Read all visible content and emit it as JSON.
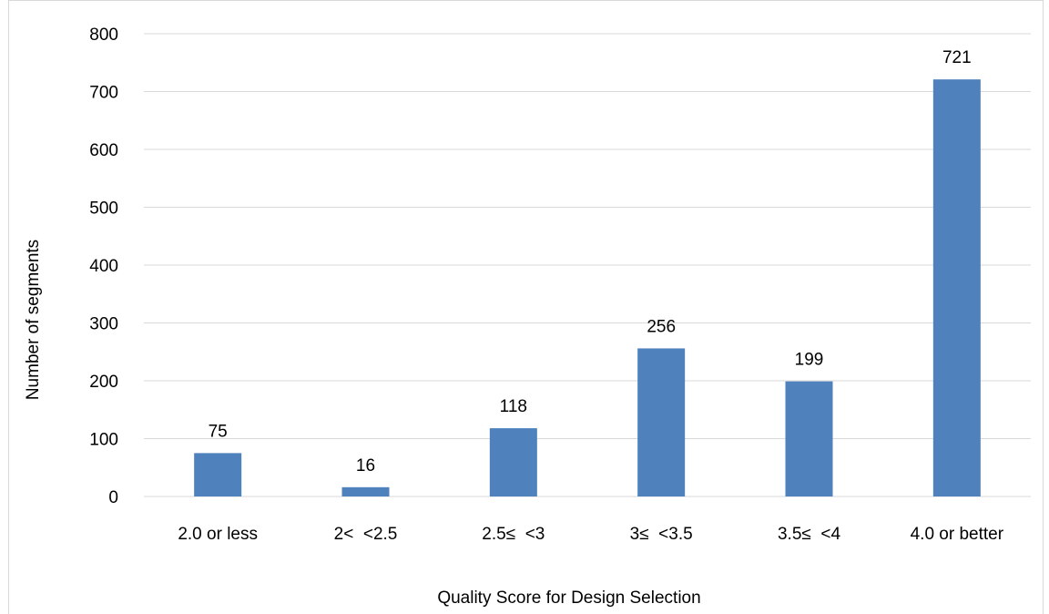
{
  "chart_data": {
    "type": "bar",
    "categories": [
      "2.0 or less",
      "2<  <2.5",
      "2.5≤  <3",
      "3≤  <3.5",
      "3.5≤  <4",
      "4.0 or better"
    ],
    "values": [
      75,
      16,
      118,
      256,
      199,
      721
    ],
    "data_labels": [
      "75",
      "16",
      "118",
      "256",
      "199",
      "721"
    ],
    "title": "",
    "xlabel": "Quality Score for Design Selection",
    "ylabel": "Number of segments",
    "ylim": [
      0,
      800
    ],
    "yticks": [
      0,
      100,
      200,
      300,
      400,
      500,
      600,
      700,
      800
    ],
    "grid": true,
    "legend": "none",
    "bar_color": "#4f81bd",
    "grid_color": "#d9d9d9"
  }
}
